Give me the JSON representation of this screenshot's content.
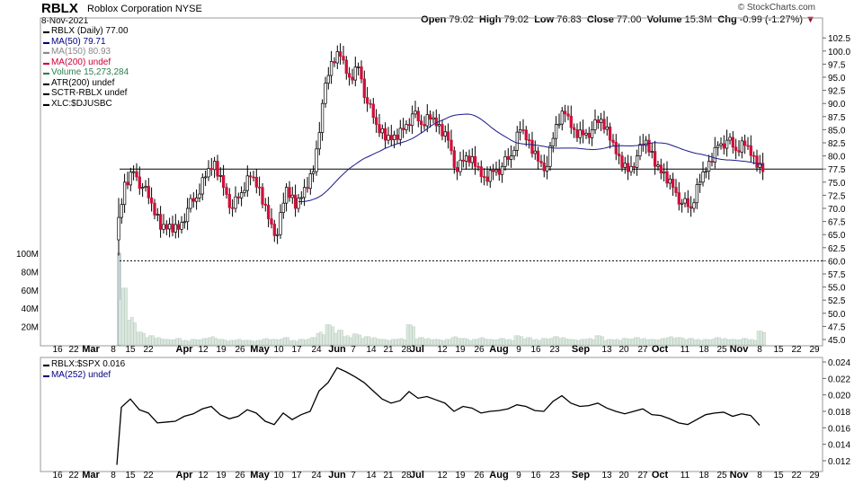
{
  "header": {
    "symbol": "RBLX",
    "company": "Roblox Corporation",
    "exchange": "NYSE",
    "date": "8-Nov-2021",
    "watermark": "© StockCharts.com",
    "open_label": "Open",
    "open": "79.02",
    "high_label": "High",
    "high": "79.02",
    "low_label": "Low",
    "low": "76.83",
    "close_label": "Close",
    "close": "77.00",
    "volume_label": "Volume",
    "volume": "15.3M",
    "chg_label": "Chg",
    "chg": "-0.99 (-1.27%)"
  },
  "legend": [
    {
      "text": "RBLX (Daily) 77.00",
      "color": "#000000"
    },
    {
      "text": "MA(50) 79.71",
      "color": "#00007f"
    },
    {
      "text": "MA(150) 80.93",
      "color": "#888888"
    },
    {
      "text": "MA(200) undef",
      "color": "#cc0033"
    },
    {
      "text": "Volume 15,273,284",
      "color": "#2e7d4f"
    },
    {
      "text": "ATR(200) undef",
      "color": "#000000"
    },
    {
      "text": "SCTR-RBLX undef",
      "color": "#000000"
    },
    {
      "text": "XLC:$DJUSBC",
      "color": "#000000"
    }
  ],
  "lower_legend": [
    {
      "text": "RBLX:$SPX 0.016",
      "color": "#000000"
    },
    {
      "text": "MA(252) undef",
      "color": "#00007f"
    }
  ],
  "chart_data": [
    {
      "type": "candlestick",
      "title": "RBLX (Daily)",
      "ylim": [
        44,
        104.5
      ],
      "yticks": [
        "45.0",
        "47.5",
        "50.0",
        "52.5",
        "55.0",
        "57.5",
        "60.0",
        "62.5",
        "65.0",
        "67.5",
        "70.0",
        "72.5",
        "75.0",
        "77.5",
        "80.0",
        "82.5",
        "85.0",
        "87.5",
        "90.0",
        "92.5",
        "95.0",
        "97.5",
        "100.0",
        "102.5"
      ],
      "volume_ticks": [
        "20M",
        "40M",
        "60M",
        "80M",
        "100M"
      ],
      "horizontal_lines": [
        77.5,
        60.0
      ],
      "first_price": 64,
      "closes": [
        75,
        77,
        74,
        71,
        66,
        67,
        66,
        70,
        72,
        76,
        79,
        74,
        70,
        73,
        76,
        74,
        68,
        65,
        74,
        70,
        74,
        77,
        90,
        98,
        99,
        95,
        97,
        90,
        86,
        83,
        84,
        85,
        88,
        86,
        87,
        86,
        83,
        77,
        80,
        78,
        76,
        77,
        78,
        80,
        85,
        83,
        79,
        78,
        86,
        88,
        85,
        84,
        85,
        87,
        83,
        80,
        77,
        80,
        83,
        78,
        77,
        74,
        71,
        70,
        75,
        79,
        82,
        83,
        81,
        82,
        80,
        77
      ],
      "volume_m": [
        62,
        30,
        14,
        10,
        8,
        6,
        7,
        5,
        6,
        7,
        9,
        6,
        5,
        6,
        5,
        5,
        7,
        6,
        8,
        5,
        6,
        8,
        14,
        22,
        16,
        10,
        12,
        9,
        8,
        6,
        6,
        7,
        22,
        8,
        7,
        6,
        6,
        9,
        7,
        6,
        8,
        6,
        7,
        6,
        10,
        8,
        6,
        7,
        9,
        8,
        6,
        6,
        7,
        10,
        6,
        6,
        7,
        8,
        7,
        6,
        7,
        9,
        8,
        7,
        6,
        6,
        8,
        7,
        6,
        7,
        6,
        15
      ],
      "x_ticks": [
        "16",
        "22",
        "Mar",
        "8",
        "15",
        "22",
        "Apr",
        "12",
        "19",
        "26",
        "May",
        "10",
        "17",
        "24",
        "Jun",
        "7",
        "14",
        "21",
        "28",
        "Jul",
        "12",
        "19",
        "26",
        "Aug",
        "9",
        "16",
        "23",
        "Sep",
        "13",
        "20",
        "27",
        "Oct",
        "11",
        "18",
        "25",
        "Nov",
        "8",
        "15",
        "22",
        "29"
      ]
    },
    {
      "type": "line",
      "title": "RBLX:$SPX",
      "ylim": [
        0.0112,
        0.0246
      ],
      "yticks": [
        "0.012",
        "0.014",
        "0.016",
        "0.018",
        "0.020",
        "0.022",
        "0.024"
      ],
      "first_value": 0.0115,
      "values": [
        0.0185,
        0.0195,
        0.0182,
        0.0178,
        0.0166,
        0.0167,
        0.0168,
        0.0174,
        0.0177,
        0.0183,
        0.0186,
        0.0176,
        0.0171,
        0.0174,
        0.0182,
        0.0178,
        0.0168,
        0.0164,
        0.0178,
        0.017,
        0.0176,
        0.018,
        0.0205,
        0.0215,
        0.0233,
        0.0228,
        0.0222,
        0.0215,
        0.0205,
        0.0195,
        0.019,
        0.0193,
        0.0204,
        0.0196,
        0.0198,
        0.0194,
        0.019,
        0.018,
        0.0186,
        0.0184,
        0.0178,
        0.018,
        0.0181,
        0.0183,
        0.0188,
        0.0186,
        0.0181,
        0.018,
        0.0192,
        0.0199,
        0.019,
        0.0186,
        0.0187,
        0.019,
        0.0184,
        0.018,
        0.0177,
        0.018,
        0.0183,
        0.0176,
        0.0175,
        0.0171,
        0.0166,
        0.0164,
        0.017,
        0.0176,
        0.0178,
        0.0179,
        0.0174,
        0.0177,
        0.0175,
        0.0163
      ]
    }
  ]
}
